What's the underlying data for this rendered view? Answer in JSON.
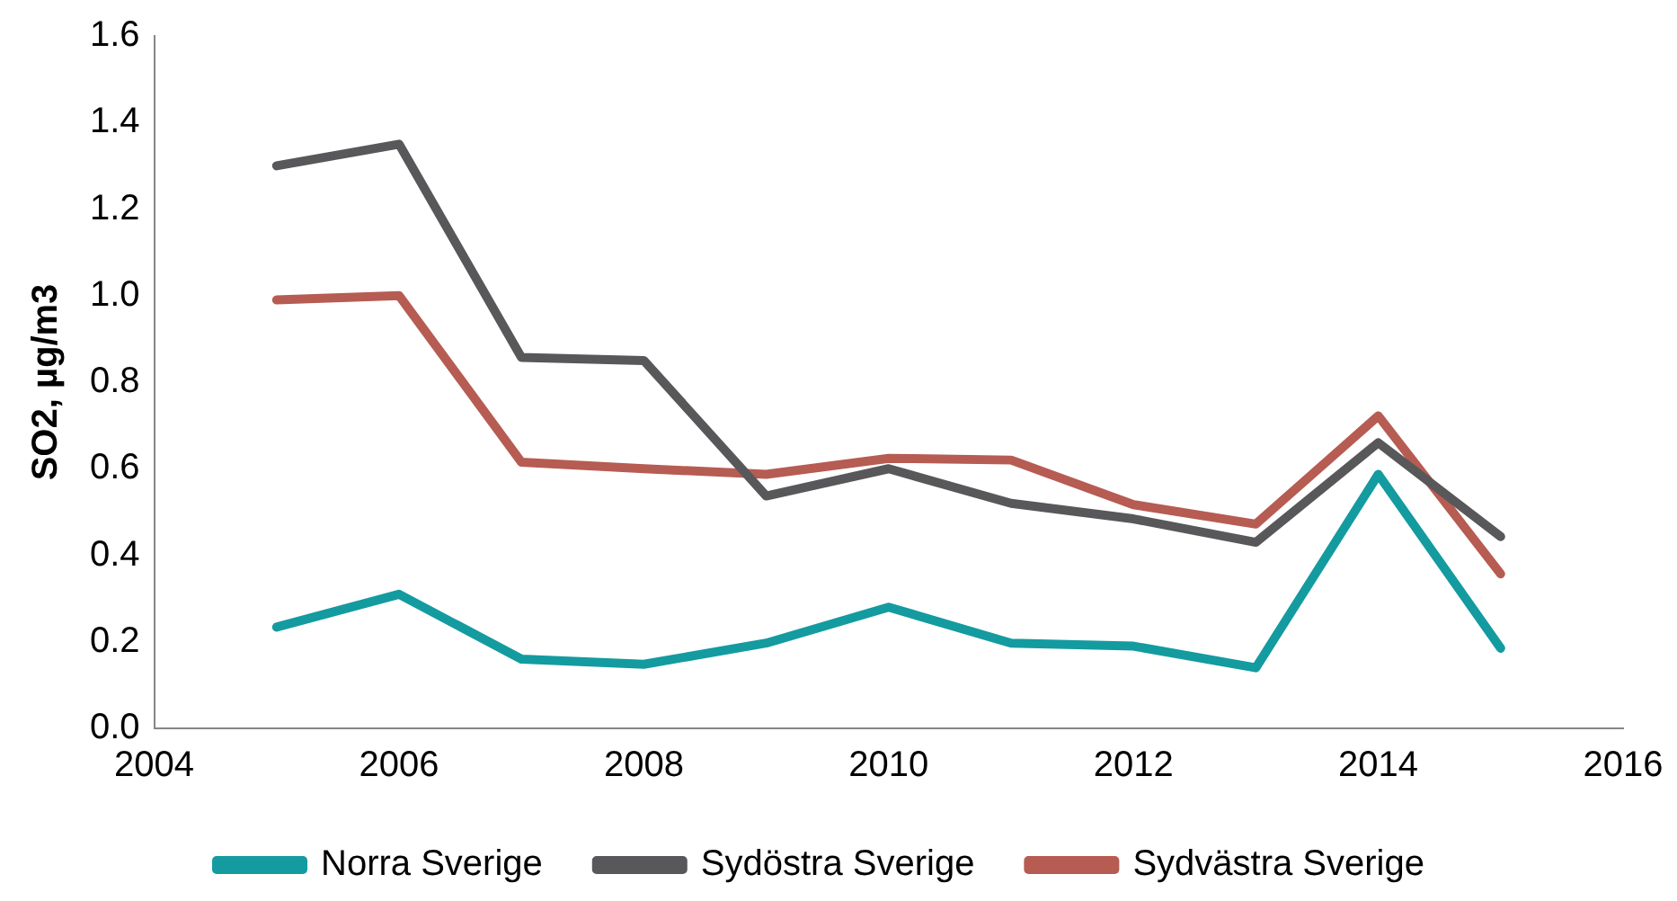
{
  "chart_data": {
    "type": "line",
    "ylabel": "SO2, µg/m3",
    "x": [
      2005,
      2006,
      2007,
      2008,
      2009,
      2010,
      2011,
      2012,
      2013,
      2014,
      2015
    ],
    "xlim": [
      2004,
      2016
    ],
    "xticks": [
      2004,
      2006,
      2008,
      2010,
      2012,
      2014,
      2016
    ],
    "ylim": [
      0,
      1.6
    ],
    "yticks": [
      {
        "value": 0,
        "label": "0.0"
      },
      {
        "value": 0.2,
        "label": "0.2"
      },
      {
        "value": 0.4,
        "label": "0.4"
      },
      {
        "value": 0.6,
        "label": "0.6"
      },
      {
        "value": 0.8,
        "label": "0.8"
      },
      {
        "value": 1,
        "label": "1.0"
      },
      {
        "value": 1.2,
        "label": "1.2"
      },
      {
        "value": 1.4,
        "label": "1.4"
      },
      {
        "value": 1.6,
        "label": "1.6"
      }
    ],
    "grid": false,
    "legend": "bottom",
    "marker": "none",
    "line_style": "solid",
    "series": [
      {
        "name": "Norra Sverige",
        "color": "#139ba0",
        "values": [
          0.234,
          0.31,
          0.16,
          0.148,
          0.197,
          0.28,
          0.197,
          0.19,
          0.14,
          0.587,
          0.185
        ]
      },
      {
        "name": "Sydöstra Sverige",
        "color": "#58585a",
        "values": [
          1.3,
          1.35,
          0.857,
          0.85,
          0.537,
          0.6,
          0.52,
          0.484,
          0.43,
          0.66,
          0.443
        ]
      },
      {
        "name": "Sydvästra Sverige",
        "color": "#b65c52",
        "values": [
          0.99,
          1.0,
          0.615,
          0.6,
          0.587,
          0.624,
          0.62,
          0.517,
          0.472,
          0.722,
          0.357
        ]
      }
    ]
  }
}
